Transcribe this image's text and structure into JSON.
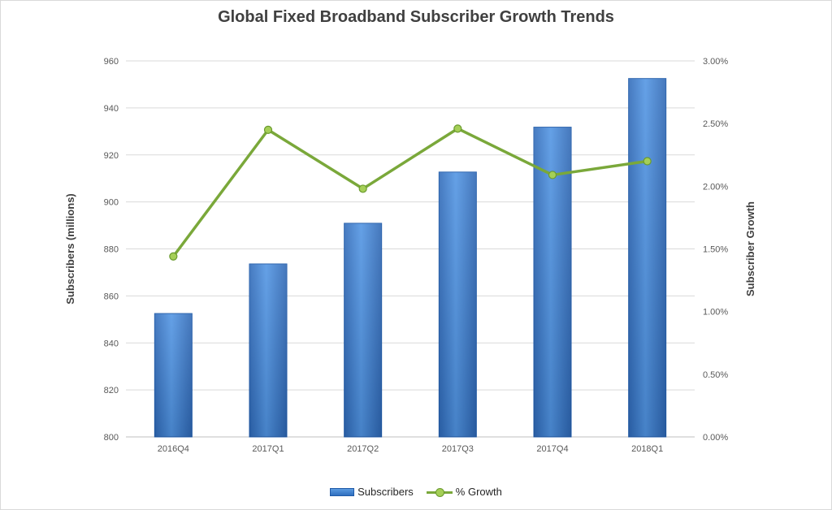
{
  "chart_data": {
    "type": "bar",
    "title": "Global Fixed Broadband Subscriber Growth Trends",
    "categories": [
      "2016Q4",
      "2017Q1",
      "2017Q2",
      "2017Q3",
      "2017Q4",
      "2018Q1"
    ],
    "series": [
      {
        "name": "Subscribers",
        "type": "bar",
        "axis": "left",
        "color": "#3c7dd1",
        "values": [
          852.5,
          873.6,
          890.9,
          912.7,
          931.8,
          952.5
        ]
      },
      {
        "name": "% Growth",
        "type": "line",
        "axis": "right",
        "color": "#7aa83a",
        "values": [
          0.0144,
          0.0245,
          0.0198,
          0.0246,
          0.0209,
          0.022
        ]
      }
    ],
    "y_left": {
      "label": "Subscribers (millions)",
      "range": [
        800,
        960
      ],
      "ticks": [
        "800",
        "820",
        "840",
        "860",
        "880",
        "900",
        "920",
        "940",
        "960"
      ]
    },
    "y_right": {
      "label": "Subscriber Growth",
      "range": [
        0,
        0.03
      ],
      "ticks": [
        "0.00%",
        "0.50%",
        "1.00%",
        "1.50%",
        "2.00%",
        "2.50%",
        "3.00%"
      ]
    },
    "grid": true,
    "legend_position": "bottom"
  }
}
